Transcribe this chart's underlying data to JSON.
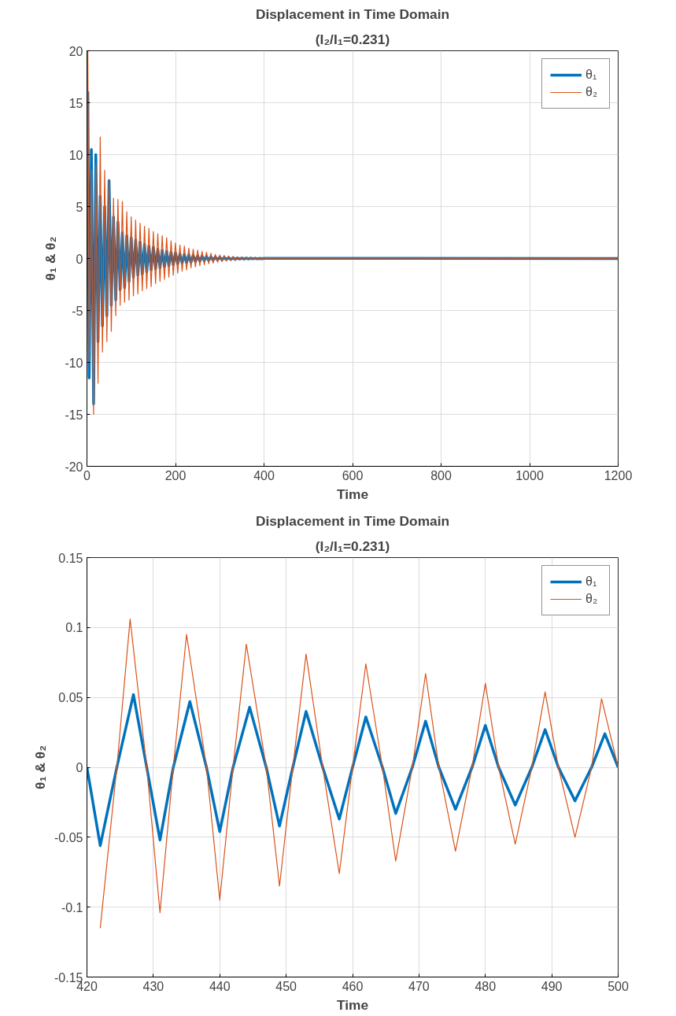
{
  "chart_data": [
    {
      "type": "line",
      "title": "Displacement in Time Domain",
      "subtitle": "(I₂/I₁=0.231)",
      "xlabel": "Time",
      "ylabel": "θ₁ & θ₂",
      "xlim": [
        0,
        1200
      ],
      "ylim": [
        -20,
        20
      ],
      "xticks": [
        0,
        200,
        400,
        600,
        800,
        1000,
        1200
      ],
      "yticks": [
        -20,
        -15,
        -10,
        -5,
        0,
        5,
        10,
        15,
        20
      ],
      "grid": true,
      "legend": "top right",
      "series": [
        {
          "name": "θ₁",
          "color": "#0072bd",
          "x": [
            0,
            2,
            5,
            10,
            15,
            20,
            25,
            30,
            35,
            40,
            45,
            50,
            55,
            60,
            65,
            70,
            75,
            80,
            85,
            90,
            95,
            100,
            105,
            110,
            115,
            120,
            125,
            130,
            135,
            140,
            145,
            150,
            155,
            160,
            165,
            170,
            175,
            180,
            185,
            190,
            195,
            200,
            205,
            210,
            215,
            220,
            225,
            230,
            235,
            240,
            245,
            250,
            255,
            260,
            265,
            270,
            275,
            280,
            285,
            290,
            295,
            300,
            305,
            310,
            315,
            320,
            325,
            330,
            335,
            340,
            345,
            350,
            355,
            360,
            365,
            370,
            375,
            380,
            385,
            390,
            395,
            400,
            1200
          ],
          "values": [
            0,
            16,
            -11.5,
            10.5,
            -14,
            10,
            -8,
            6,
            -6.5,
            5,
            -5.5,
            7.5,
            -4.5,
            4,
            -4,
            3.5,
            -3,
            2.5,
            -2.8,
            2.2,
            -2.2,
            2,
            -1.8,
            1.8,
            -1.6,
            1.6,
            -1.5,
            1.4,
            -1.3,
            1.2,
            -1.1,
            1.1,
            -1,
            0.9,
            -0.9,
            0.8,
            -0.8,
            0.7,
            -0.7,
            0.6,
            -0.6,
            0.55,
            -0.5,
            0.45,
            -0.45,
            0.4,
            -0.4,
            0.35,
            -0.35,
            0.3,
            -0.3,
            0.25,
            -0.25,
            0.22,
            -0.2,
            0.2,
            -0.18,
            0.16,
            -0.15,
            0.14,
            -0.13,
            0.12,
            -0.11,
            0.1,
            -0.09,
            0.09,
            -0.08,
            0.07,
            -0.07,
            0.06,
            -0.06,
            0.05,
            -0.05,
            0.04,
            -0.04,
            0.04,
            -0.03,
            0.03,
            -0.03,
            0.02,
            -0.02,
            0.02,
            0
          ]
        },
        {
          "name": "θ₂",
          "color": "#d95319",
          "x": [
            0,
            2,
            5,
            10,
            15,
            20,
            25,
            30,
            35,
            40,
            45,
            50,
            55,
            60,
            65,
            70,
            75,
            80,
            85,
            90,
            95,
            100,
            105,
            110,
            115,
            120,
            125,
            130,
            135,
            140,
            145,
            150,
            155,
            160,
            165,
            170,
            175,
            180,
            185,
            190,
            195,
            200,
            205,
            210,
            215,
            220,
            225,
            230,
            235,
            240,
            245,
            250,
            255,
            260,
            265,
            270,
            275,
            280,
            285,
            290,
            295,
            300,
            305,
            310,
            315,
            320,
            325,
            330,
            335,
            340,
            345,
            350,
            355,
            360,
            365,
            370,
            375,
            380,
            385,
            390,
            395,
            400,
            1200
          ],
          "values": [
            0,
            20,
            -10,
            8.5,
            -15,
            9,
            -12,
            11.7,
            -9,
            8.5,
            -8,
            7.5,
            -7,
            5.8,
            -5.5,
            5.7,
            -4.5,
            5.5,
            -4.2,
            4.5,
            -4,
            4,
            -3.6,
            3.7,
            -3.4,
            3.4,
            -3.1,
            3.1,
            -2.9,
            2.9,
            -2.7,
            2.6,
            -2.4,
            2.4,
            -2.2,
            2.2,
            -2,
            2,
            -1.8,
            1.7,
            -1.6,
            1.5,
            -1.4,
            1.3,
            -1.2,
            1.2,
            -1.1,
            1,
            -0.9,
            0.9,
            -0.8,
            0.8,
            -0.7,
            0.7,
            -0.6,
            0.6,
            -0.5,
            0.5,
            -0.45,
            0.4,
            -0.35,
            0.35,
            -0.3,
            0.3,
            -0.25,
            0.25,
            -0.2,
            0.2,
            -0.18,
            0.16,
            -0.14,
            0.13,
            -0.11,
            0.1,
            -0.09,
            0.08,
            -0.07,
            0.06,
            -0.05,
            0.05,
            -0.04,
            0.04,
            0
          ]
        }
      ]
    },
    {
      "type": "line",
      "title": "Displacement in Time Domain",
      "subtitle": "(I₂/I₁=0.231)",
      "xlabel": "Time",
      "ylabel": "θ₁ & θ₂",
      "xlim": [
        420,
        500
      ],
      "ylim": [
        -0.15,
        0.15
      ],
      "xticks": [
        420,
        430,
        440,
        450,
        460,
        470,
        480,
        490,
        500
      ],
      "yticks": [
        -0.15,
        -0.1,
        -0.05,
        0,
        0.05,
        0.1,
        0.15
      ],
      "grid": true,
      "legend": "top right",
      "series": [
        {
          "name": "θ₁",
          "color": "#0072bd",
          "x": [
            420,
            422,
            424.5,
            427,
            429,
            431,
            433,
            435.5,
            438,
            440,
            442,
            444.5,
            447,
            449,
            451,
            453,
            455.5,
            458,
            460,
            462,
            464.5,
            466.5,
            469,
            471,
            473,
            475.5,
            478,
            480,
            482,
            484.5,
            487,
            489,
            491,
            493.5,
            496,
            498,
            500
          ],
          "values": [
            0,
            -0.056,
            0,
            0.052,
            0,
            -0.052,
            0,
            0.047,
            0,
            -0.046,
            0,
            0.043,
            0,
            -0.042,
            0,
            0.04,
            0,
            -0.037,
            0,
            0.036,
            0,
            -0.033,
            0,
            0.033,
            0,
            -0.03,
            0,
            0.03,
            0,
            -0.027,
            0,
            0.027,
            0,
            -0.024,
            0,
            0.024,
            0
          ]
        },
        {
          "name": "θ₂",
          "color": "#d95319",
          "x": [
            422,
            424.5,
            426.5,
            429,
            431,
            433,
            435,
            438,
            440,
            442,
            444,
            447,
            449,
            451,
            453,
            455.5,
            458,
            460,
            462,
            464.5,
            466.5,
            469,
            471,
            473,
            475.5,
            478,
            480,
            482,
            484.5,
            487,
            489,
            491,
            493.5,
            496,
            497.5,
            500
          ],
          "values": [
            -0.115,
            0,
            0.106,
            0,
            -0.104,
            0,
            0.095,
            0,
            -0.095,
            0,
            0.088,
            0,
            -0.085,
            0,
            0.081,
            0,
            -0.076,
            0,
            0.074,
            0,
            -0.067,
            0,
            0.067,
            0,
            -0.06,
            0,
            0.06,
            0,
            -0.055,
            0,
            0.054,
            0,
            -0.05,
            0,
            0.049,
            0
          ]
        }
      ]
    }
  ]
}
